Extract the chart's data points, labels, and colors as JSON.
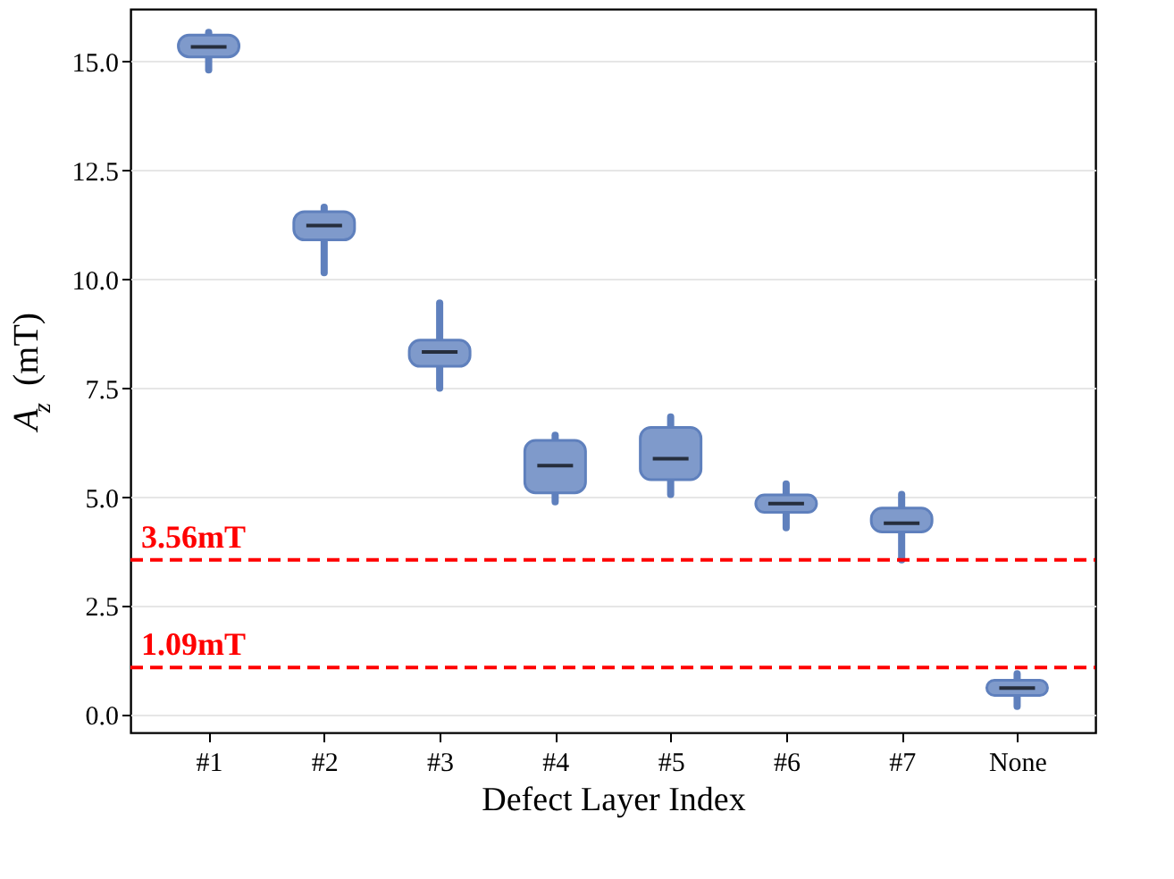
{
  "chart_data": {
    "type": "box",
    "xlabel": "Defect Layer Index",
    "ylabel": "A$_{z}$ (mT)",
    "categories": [
      "#1",
      "#2",
      "#3",
      "#4",
      "#5",
      "#6",
      "#7",
      "None"
    ],
    "series": [
      {
        "color": "#7f9acb",
        "boxes": [
          {
            "low": 14.8,
            "q1": 15.1,
            "median": 15.33,
            "q3": 15.6,
            "high": 15.66
          },
          {
            "low": 10.15,
            "q1": 10.9,
            "median": 11.23,
            "q3": 11.55,
            "high": 11.65
          },
          {
            "low": 7.5,
            "q1": 8.0,
            "median": 8.33,
            "q3": 8.6,
            "high": 9.45
          },
          {
            "low": 4.89,
            "q1": 5.1,
            "median": 5.72,
            "q3": 6.3,
            "high": 6.42
          },
          {
            "low": 5.06,
            "q1": 5.4,
            "median": 5.88,
            "q3": 6.6,
            "high": 6.84
          },
          {
            "low": 4.3,
            "q1": 4.65,
            "median": 4.85,
            "q3": 5.05,
            "high": 5.3
          },
          {
            "low": 3.56,
            "q1": 4.2,
            "median": 4.4,
            "q3": 4.75,
            "high": 5.06
          },
          {
            "low": 0.2,
            "q1": 0.45,
            "median": 0.62,
            "q3": 0.8,
            "high": 0.95
          }
        ]
      }
    ],
    "ylim": [
      -0.4,
      16.2
    ],
    "yticks": [
      {
        "value": 0,
        "label": "0.0"
      },
      {
        "value": 2.5,
        "label": "2.5"
      },
      {
        "value": 5,
        "label": "5.0"
      },
      {
        "value": 7.5,
        "label": "7.5"
      },
      {
        "value": 10,
        "label": "10.0"
      },
      {
        "value": 12.5,
        "label": "12.5"
      },
      {
        "value": 15,
        "label": "15.0"
      }
    ],
    "grid": "y",
    "ref_lines": [
      {
        "axis": "y",
        "value": 3.56,
        "label": "3.56mT",
        "color": "#ff0000",
        "line_style": "dashed"
      },
      {
        "axis": "y",
        "value": 1.09,
        "label": "1.09mT",
        "color": "#ff0000",
        "line_style": "dashed"
      }
    ]
  }
}
